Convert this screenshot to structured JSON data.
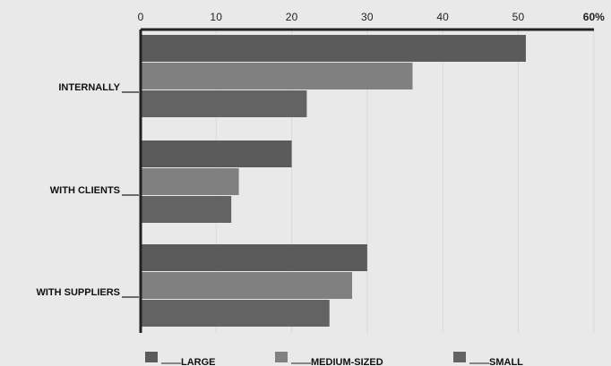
{
  "chart_data": {
    "type": "bar",
    "orientation": "horizontal",
    "title": "",
    "xlabel": "",
    "ylabel": "",
    "xlim": [
      0,
      60
    ],
    "x_ticks": [
      "0",
      "10",
      "20",
      "30",
      "40",
      "50",
      "60%"
    ],
    "tick_values": [
      0,
      10,
      20,
      30,
      40,
      50,
      60
    ],
    "categories": [
      "INTERNALLY",
      "WITH CLIENTS",
      "WITH SUPPLIERS"
    ],
    "series": [
      {
        "name": "LARGE",
        "values": [
          51,
          20,
          30
        ],
        "color": "#5b5b5b"
      },
      {
        "name": "MEDIUM-SIZED",
        "values": [
          36,
          13,
          28
        ],
        "color": "#808080"
      },
      {
        "name": "SMALL",
        "values": [
          22,
          12,
          25
        ],
        "color": "#636363"
      }
    ],
    "grid": true,
    "legend_position": "bottom"
  }
}
